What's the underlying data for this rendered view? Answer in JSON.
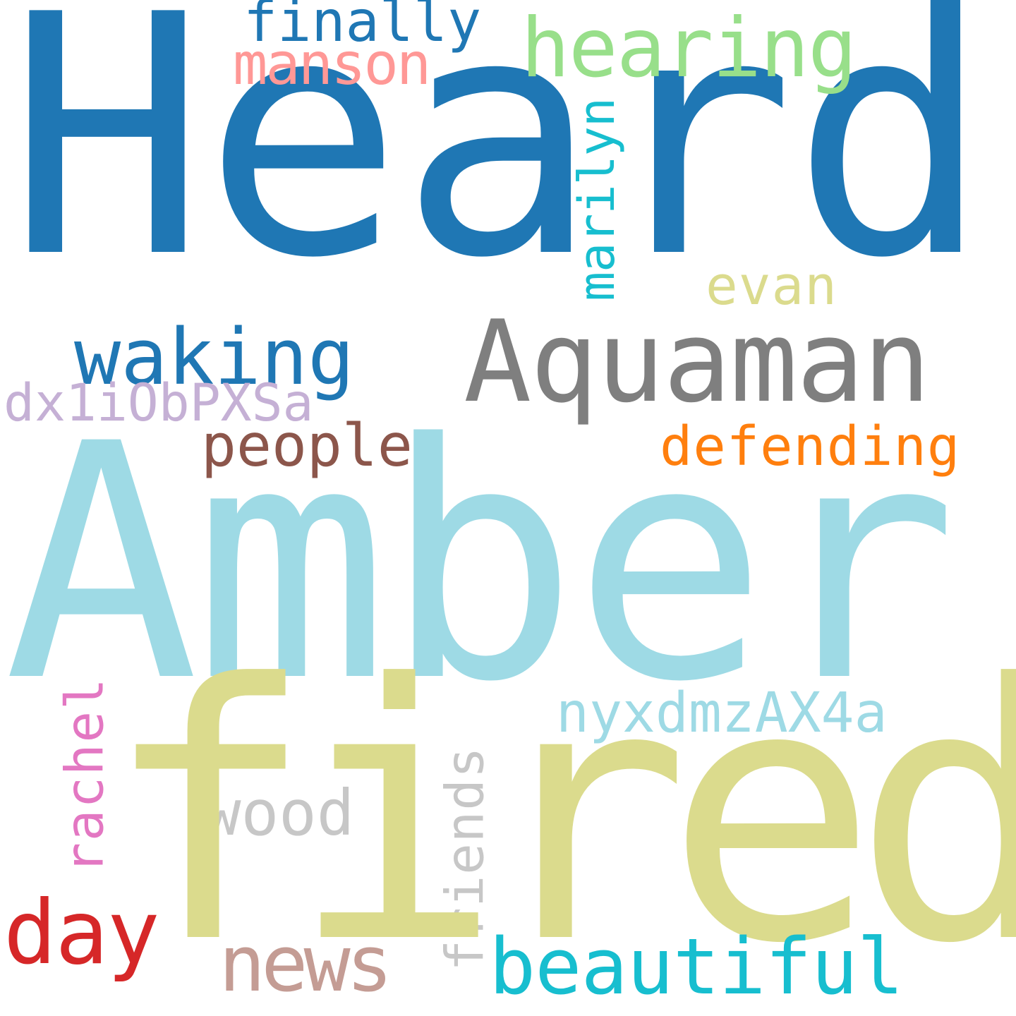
{
  "words": {
    "heard": {
      "text": "Heard",
      "color": "#1f77b4"
    },
    "amber": {
      "text": "Amber",
      "color": "#9edae5"
    },
    "fired": {
      "text": "fired",
      "color": "#dbdb8d"
    },
    "aquaman": {
      "text": "Aquaman",
      "color": "#7f7f7f"
    },
    "hearing": {
      "text": "hearing",
      "color": "#98df8a"
    },
    "finally": {
      "text": "finally",
      "color": "#1f77b4"
    },
    "manson": {
      "text": "manson",
      "color": "#ff9896"
    },
    "marilyn": {
      "text": "marilyn",
      "color": "#17becf"
    },
    "evan": {
      "text": "evan",
      "color": "#dbdb8d"
    },
    "waking": {
      "text": "waking",
      "color": "#1f77b4"
    },
    "dx1iObPXSa": {
      "text": "dx1iObPXSa",
      "color": "#c5b0d5"
    },
    "people": {
      "text": "people",
      "color": "#8c564b"
    },
    "defending": {
      "text": "defending",
      "color": "#ff7f0e"
    },
    "nyxdmzAX4a": {
      "text": "nyxdmzAX4a",
      "color": "#9edae5"
    },
    "rachel": {
      "text": "rachel",
      "color": "#e377c2"
    },
    "friends": {
      "text": "friends",
      "color": "#c7c7c7"
    },
    "wood": {
      "text": "wood",
      "color": "#c7c7c7"
    },
    "day": {
      "text": "day",
      "color": "#d62728"
    },
    "news": {
      "text": "news",
      "color": "#c49c94"
    },
    "beautiful": {
      "text": "beautiful",
      "color": "#17becf"
    }
  }
}
